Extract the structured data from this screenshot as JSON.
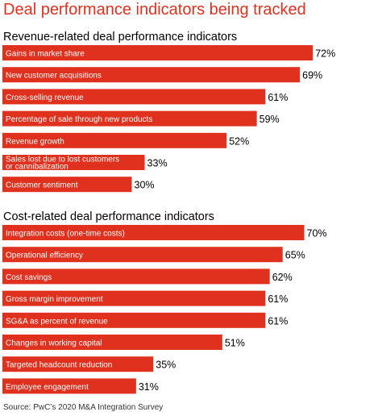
{
  "title": "Deal performance indicators being tracked",
  "source": "Source: PwC’s 2020 M&A Integration Survey",
  "colors": {
    "bar": "#e0301e",
    "bar_text": "#ffffff",
    "title": "#e0301e",
    "value_text": "#000000"
  },
  "chart_data": [
    {
      "type": "bar",
      "orientation": "horizontal",
      "title": "Revenue-related deal performance indicators",
      "categories": [
        "Gains in market share",
        "New customer acquisitions",
        "Cross-selling revenue",
        "Percentage of sale through new products",
        "Revenue growth",
        "Sales lost due to lost customers or cannibalization",
        "Customer sentiment"
      ],
      "values": [
        72,
        69,
        61,
        59,
        52,
        33,
        30
      ],
      "value_labels": [
        "72%",
        "69%",
        "61%",
        "59%",
        "52%",
        "33%",
        "30%"
      ],
      "unit": "%",
      "xlim": [
        0,
        100
      ],
      "grid": false,
      "legend": "none"
    },
    {
      "type": "bar",
      "orientation": "horizontal",
      "title": "Cost-related deal performance indicators",
      "categories": [
        "Integration costs (one-time costs)",
        "Operational efficiency",
        "Cost savings",
        "Gross margin improvement",
        "SG&A as percent of revenue",
        "Changes in working capital",
        "Targeted headcount reduction",
        "Employee engagement"
      ],
      "values": [
        70,
        65,
        62,
        61,
        61,
        51,
        35,
        31
      ],
      "value_labels": [
        "70%",
        "65%",
        "62%",
        "61%",
        "61%",
        "51%",
        "35%",
        "31%"
      ],
      "unit": "%",
      "xlim": [
        0,
        100
      ],
      "grid": false,
      "legend": "none"
    }
  ]
}
